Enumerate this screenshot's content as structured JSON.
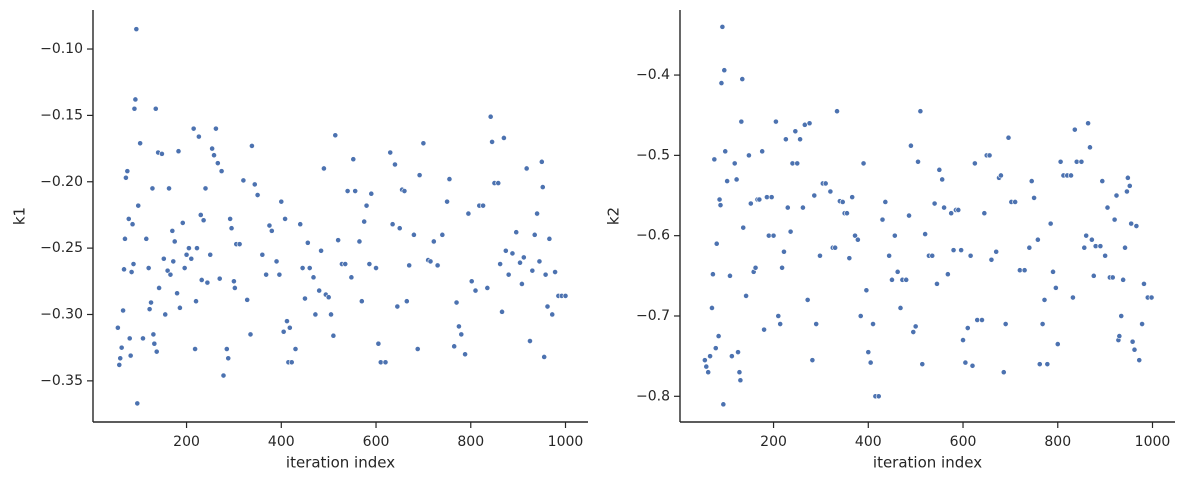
{
  "chart_data": [
    {
      "type": "scatter",
      "xlabel": "iteration index",
      "ylabel": "k1",
      "color": "#4c72b0",
      "xlim": [
        2.5,
        1047.5
      ],
      "ylim": [
        -0.381,
        -0.0706
      ],
      "xticks": [
        200,
        400,
        600,
        800,
        1000
      ],
      "yticks": [
        {
          "value": -0.35,
          "label": "−0.35"
        },
        {
          "value": -0.3,
          "label": "−0.30"
        },
        {
          "value": -0.25,
          "label": "−0.25"
        },
        {
          "value": -0.2,
          "label": "−0.20"
        },
        {
          "value": -0.15,
          "label": "−0.15"
        },
        {
          "value": -0.1,
          "label": "−0.10"
        }
      ],
      "x": [
        55,
        58,
        60,
        63,
        66,
        68,
        70,
        72,
        75,
        78,
        80,
        82,
        84,
        86,
        88,
        90,
        92,
        94,
        96,
        98,
        102,
        108,
        115,
        120,
        122,
        125,
        128,
        130,
        132,
        135,
        137,
        140,
        142,
        148,
        152,
        155,
        160,
        163,
        166,
        170,
        172,
        175,
        180,
        183,
        186,
        192,
        196,
        200,
        205,
        210,
        215,
        218,
        220,
        222,
        226,
        230,
        232,
        236,
        240,
        244,
        250,
        254,
        258,
        262,
        266,
        270,
        274,
        278,
        285,
        288,
        292,
        295,
        300,
        302,
        305,
        312,
        320,
        328,
        335,
        338,
        344,
        350,
        360,
        368,
        375,
        380,
        390,
        396,
        400,
        405,
        408,
        412,
        415,
        418,
        422,
        430,
        440,
        445,
        450,
        456,
        460,
        468,
        472,
        480,
        484,
        490,
        494,
        500,
        505,
        510,
        514,
        520,
        528,
        535,
        540,
        548,
        552,
        556,
        565,
        570,
        575,
        580,
        586,
        590,
        600,
        605,
        610,
        620,
        630,
        635,
        640,
        645,
        650,
        655,
        660,
        665,
        670,
        680,
        688,
        692,
        700,
        710,
        715,
        722,
        730,
        740,
        750,
        755,
        765,
        770,
        775,
        780,
        788,
        795,
        802,
        810,
        818,
        826,
        835,
        842,
        845,
        850,
        858,
        862,
        866,
        870,
        874,
        880,
        888,
        896,
        904,
        908,
        912,
        918,
        925,
        930,
        935,
        940,
        945,
        950,
        952,
        955,
        958,
        962,
        966,
        972,
        978,
        985,
        992,
        1000
      ],
      "values": [
        -0.31,
        -0.338,
        -0.333,
        -0.325,
        -0.297,
        -0.266,
        -0.243,
        -0.197,
        -0.192,
        -0.228,
        -0.318,
        -0.331,
        -0.268,
        -0.232,
        -0.262,
        -0.145,
        -0.138,
        -0.085,
        -0.367,
        -0.218,
        -0.171,
        -0.318,
        -0.243,
        -0.265,
        -0.296,
        -0.291,
        -0.205,
        -0.315,
        -0.322,
        -0.145,
        -0.328,
        -0.178,
        -0.28,
        -0.179,
        -0.258,
        -0.3,
        -0.267,
        -0.205,
        -0.27,
        -0.237,
        -0.26,
        -0.245,
        -0.284,
        -0.177,
        -0.295,
        -0.231,
        -0.265,
        -0.255,
        -0.25,
        -0.258,
        -0.16,
        -0.326,
        -0.29,
        -0.25,
        -0.166,
        -0.225,
        -0.274,
        -0.229,
        -0.205,
        -0.276,
        -0.255,
        -0.175,
        -0.18,
        -0.16,
        -0.186,
        -0.273,
        -0.192,
        -0.346,
        -0.326,
        -0.333,
        -0.228,
        -0.235,
        -0.275,
        -0.28,
        -0.247,
        -0.247,
        -0.199,
        -0.289,
        -0.315,
        -0.173,
        -0.202,
        -0.21,
        -0.255,
        -0.27,
        -0.233,
        -0.237,
        -0.26,
        -0.27,
        -0.215,
        -0.313,
        -0.228,
        -0.305,
        -0.336,
        -0.31,
        -0.336,
        -0.326,
        -0.232,
        -0.265,
        -0.288,
        -0.246,
        -0.265,
        -0.272,
        -0.3,
        -0.282,
        -0.252,
        -0.19,
        -0.285,
        -0.287,
        -0.3,
        -0.316,
        -0.165,
        -0.244,
        -0.262,
        -0.262,
        -0.207,
        -0.272,
        -0.183,
        -0.207,
        -0.245,
        -0.29,
        -0.23,
        -0.218,
        -0.262,
        -0.209,
        -0.265,
        -0.322,
        -0.336,
        -0.336,
        -0.178,
        -0.232,
        -0.187,
        -0.294,
        -0.235,
        -0.206,
        -0.207,
        -0.29,
        -0.263,
        -0.24,
        -0.326,
        -0.195,
        -0.171,
        -0.259,
        -0.26,
        -0.245,
        -0.263,
        -0.24,
        -0.215,
        -0.198,
        -0.324,
        -0.291,
        -0.309,
        -0.315,
        -0.33,
        -0.224,
        -0.275,
        -0.282,
        -0.218,
        -0.218,
        -0.28,
        -0.151,
        -0.17,
        -0.201,
        -0.201,
        -0.262,
        -0.298,
        -0.167,
        -0.252,
        -0.27,
        -0.254,
        -0.238,
        -0.261,
        -0.277,
        -0.257,
        -0.19,
        -0.32,
        -0.267,
        -0.24,
        -0.224,
        -0.26,
        -0.185,
        -0.204,
        -0.332,
        -0.27,
        -0.294,
        -0.243,
        -0.3,
        -0.268,
        -0.286,
        -0.286,
        -0.286
      ]
    },
    {
      "type": "scatter",
      "xlabel": "iteration index",
      "ylabel": "k2",
      "color": "#4c72b0",
      "xlim": [
        2.5,
        1047.5
      ],
      "ylim": [
        -0.832,
        -0.319
      ],
      "xticks": [
        200,
        400,
        600,
        800,
        1000
      ],
      "yticks": [
        {
          "value": -0.8,
          "label": "−0.8"
        },
        {
          "value": -0.7,
          "label": "−0.7"
        },
        {
          "value": -0.6,
          "label": "−0.6"
        },
        {
          "value": -0.5,
          "label": "−0.5"
        },
        {
          "value": -0.4,
          "label": "−0.4"
        }
      ],
      "x": [
        55,
        58,
        62,
        66,
        70,
        72,
        75,
        78,
        80,
        84,
        86,
        88,
        90,
        92,
        94,
        96,
        98,
        102,
        108,
        112,
        118,
        122,
        125,
        128,
        130,
        132,
        134,
        136,
        142,
        148,
        152,
        158,
        162,
        166,
        170,
        176,
        180,
        186,
        190,
        196,
        200,
        205,
        210,
        214,
        218,
        222,
        226,
        230,
        236,
        240,
        246,
        250,
        256,
        262,
        266,
        272,
        276,
        282,
        286,
        290,
        298,
        304,
        310,
        320,
        325,
        330,
        334,
        340,
        346,
        350,
        355,
        360,
        366,
        372,
        378,
        384,
        390,
        396,
        400,
        405,
        410,
        415,
        422,
        430,
        436,
        444,
        450,
        456,
        462,
        468,
        472,
        480,
        486,
        490,
        495,
        500,
        505,
        510,
        514,
        520,
        528,
        535,
        540,
        545,
        550,
        556,
        560,
        568,
        575,
        580,
        585,
        590,
        596,
        600,
        605,
        610,
        616,
        620,
        625,
        630,
        640,
        645,
        650,
        656,
        660,
        670,
        676,
        680,
        686,
        690,
        696,
        702,
        710,
        720,
        730,
        740,
        745,
        750,
        758,
        762,
        768,
        772,
        778,
        785,
        790,
        796,
        800,
        806,
        812,
        820,
        828,
        832,
        836,
        840,
        850,
        856,
        860,
        864,
        868,
        872,
        876,
        880,
        890,
        894,
        900,
        905,
        910,
        916,
        920,
        924,
        928,
        930,
        934,
        938,
        942,
        946,
        948,
        952,
        955,
        958,
        962,
        966,
        972,
        978,
        982,
        990,
        998
      ],
      "values": [
        -0.755,
        -0.763,
        -0.77,
        -0.75,
        -0.69,
        -0.648,
        -0.505,
        -0.74,
        -0.61,
        -0.725,
        -0.555,
        -0.562,
        -0.41,
        -0.34,
        -0.81,
        -0.394,
        -0.495,
        -0.532,
        -0.65,
        -0.75,
        -0.51,
        -0.53,
        -0.745,
        -0.77,
        -0.78,
        -0.458,
        -0.405,
        -0.59,
        -0.675,
        -0.5,
        -0.56,
        -0.645,
        -0.64,
        -0.555,
        -0.555,
        -0.495,
        -0.717,
        -0.552,
        -0.6,
        -0.552,
        -0.6,
        -0.458,
        -0.7,
        -0.71,
        -0.64,
        -0.62,
        -0.48,
        -0.565,
        -0.595,
        -0.51,
        -0.47,
        -0.51,
        -0.48,
        -0.565,
        -0.462,
        -0.68,
        -0.46,
        -0.755,
        -0.55,
        -0.71,
        -0.625,
        -0.535,
        -0.535,
        -0.545,
        -0.615,
        -0.615,
        -0.445,
        -0.557,
        -0.558,
        -0.572,
        -0.572,
        -0.628,
        -0.552,
        -0.6,
        -0.605,
        -0.7,
        -0.51,
        -0.668,
        -0.745,
        -0.758,
        -0.71,
        -0.8,
        -0.8,
        -0.58,
        -0.558,
        -0.625,
        -0.655,
        -0.6,
        -0.645,
        -0.69,
        -0.655,
        -0.655,
        -0.575,
        -0.488,
        -0.72,
        -0.713,
        -0.508,
        -0.445,
        -0.76,
        -0.598,
        -0.625,
        -0.625,
        -0.56,
        -0.66,
        -0.518,
        -0.53,
        -0.565,
        -0.648,
        -0.572,
        -0.618,
        -0.568,
        -0.568,
        -0.618,
        -0.73,
        -0.758,
        -0.715,
        -0.625,
        -0.762,
        -0.51,
        -0.705,
        -0.705,
        -0.572,
        -0.5,
        -0.5,
        -0.63,
        -0.62,
        -0.528,
        -0.525,
        -0.77,
        -0.71,
        -0.478,
        -0.558,
        -0.558,
        -0.643,
        -0.643,
        -0.615,
        -0.532,
        -0.553,
        -0.605,
        -0.76,
        -0.71,
        -0.68,
        -0.76,
        -0.585,
        -0.645,
        -0.665,
        -0.735,
        -0.508,
        -0.525,
        -0.525,
        -0.525,
        -0.677,
        -0.468,
        -0.508,
        -0.508,
        -0.615,
        -0.6,
        -0.46,
        -0.49,
        -0.605,
        -0.65,
        -0.613,
        -0.613,
        -0.532,
        -0.625,
        -0.565,
        -0.652,
        -0.652,
        -0.58,
        -0.55,
        -0.73,
        -0.725,
        -0.7,
        -0.655,
        -0.615,
        -0.545,
        -0.528,
        -0.538,
        -0.585,
        -0.732,
        -0.742,
        -0.588,
        -0.755,
        -0.71,
        -0.66,
        -0.677,
        -0.677
      ]
    }
  ]
}
